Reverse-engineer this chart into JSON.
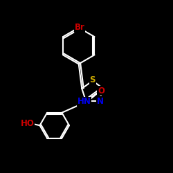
{
  "background_color": "#000000",
  "bond_color": "#ffffff",
  "line_width": 1.5,
  "atom_colors": {
    "Br": "#cc0000",
    "S": "#ccaa00",
    "N": "#0000ee",
    "O": "#cc0000",
    "HO": "#cc0000",
    "C": "#ffffff"
  },
  "font_size": 8.5,
  "xlim": [
    0,
    10
  ],
  "ylim": [
    0,
    10
  ]
}
